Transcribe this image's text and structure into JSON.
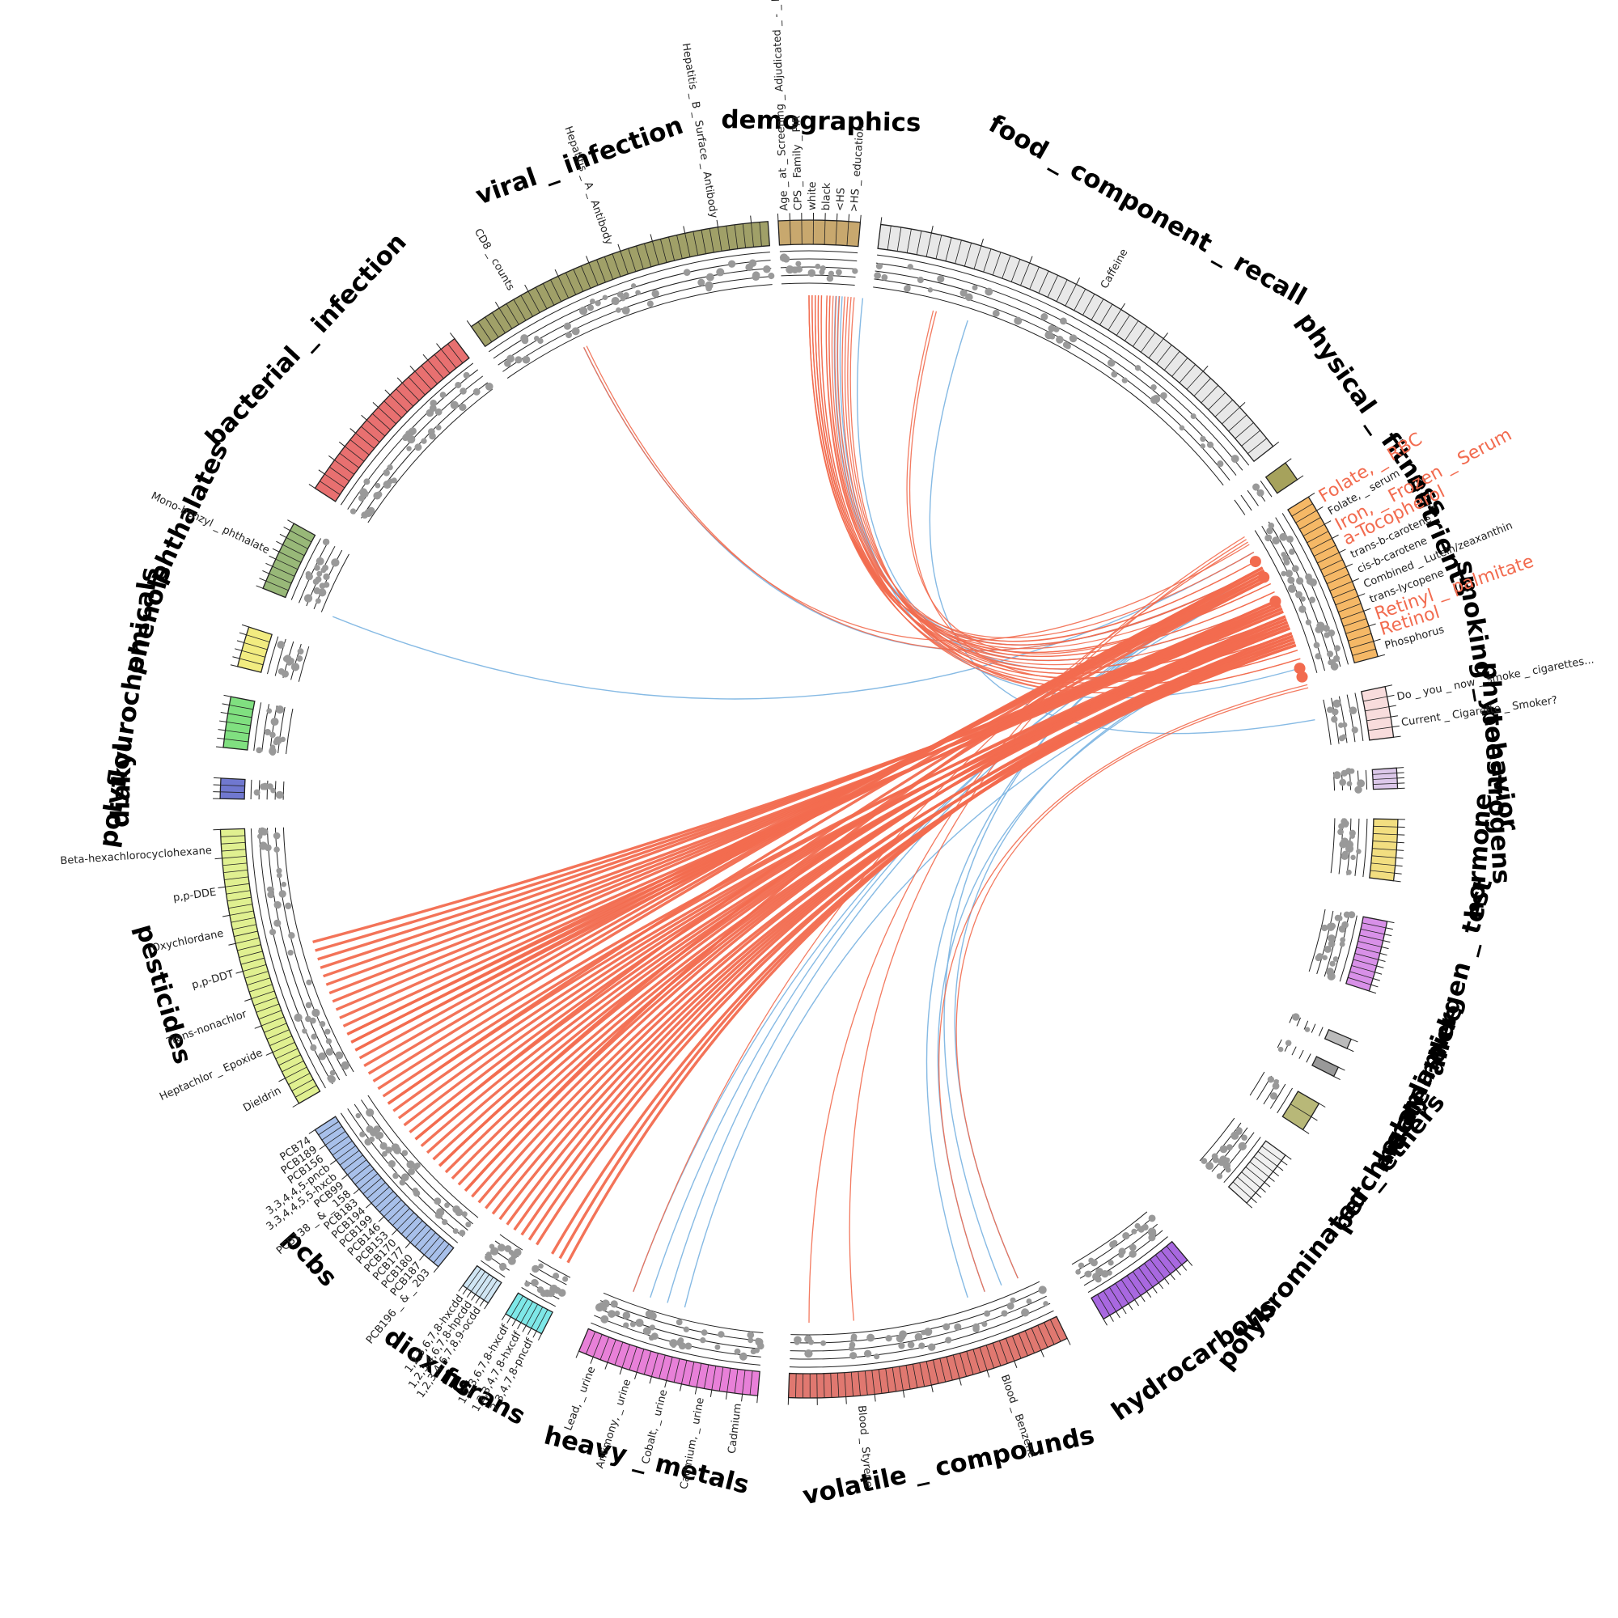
{
  "colors": {
    "link_positive": "#f26b4f",
    "link_negative": "#7fb6e3",
    "highlight": "#f26b4f",
    "dots": "#999999",
    "track_lines": "#222222"
  },
  "groups": [
    {
      "name": "demographics",
      "label": "demographics",
      "color": "#c8a86e",
      "start": -3,
      "end": 5,
      "ticks": 7
    },
    {
      "name": "food_component_recall",
      "label": "food _ component _ recall",
      "color": "#e8e8e8",
      "start": 7,
      "end": 52,
      "ticks": 45
    },
    {
      "name": "physical_fitness",
      "label": "physical _ fitness",
      "color": "#a6a25c",
      "start": 54,
      "end": 56,
      "ticks": 1
    },
    {
      "name": "nutrients",
      "label": "nutrients",
      "color": "#f5b866",
      "start": 58,
      "end": 75,
      "ticks": 22
    },
    {
      "name": "smoking_behavior",
      "label": "smoking _ behavior",
      "color": "#f8dcdc",
      "start": 78,
      "end": 83,
      "ticks": 5
    },
    {
      "name": "phytoestrogens",
      "label": "phytoestrogens",
      "color": "#dcc8ea",
      "start": 86,
      "end": 88,
      "ticks": 4
    },
    {
      "name": "hormone",
      "label": "hormone",
      "color": "#f2de80",
      "start": 91,
      "end": 97,
      "ticks": 8
    },
    {
      "name": "allergen_test",
      "label": "allergen _ test",
      "color": "#d890e8",
      "start": 101,
      "end": 108,
      "ticks": 11
    },
    {
      "name": "acrylamide",
      "label": "acrylamide",
      "color": "#bbbbbb",
      "start": 113,
      "end": 114,
      "ticks": 1
    },
    {
      "name": "melamine",
      "label": "melamine",
      "color": "#999999",
      "start": 116,
      "end": 117,
      "ticks": 1
    },
    {
      "name": "perchlorate",
      "label": "perchlorate",
      "color": "#b8b878",
      "start": 120,
      "end": 123,
      "ticks": 2
    },
    {
      "name": "polybrominated_ethers",
      "label": "polybrominated _ ethers",
      "color": "#f0f0f0",
      "start": 126,
      "end": 132,
      "ticks": 9
    },
    {
      "name": "hydrocarbons",
      "label": "hydrocarbons",
      "color": "#a868e0",
      "start": 140,
      "end": 150,
      "ticks": 14
    },
    {
      "name": "volatile_compounds",
      "label": "volatile _ compounds",
      "color": "#e07870",
      "start": 154,
      "end": 182,
      "ticks": 40
    },
    {
      "name": "heavy_metals",
      "label": "heavy _ metals",
      "color": "#e880d8",
      "start": 185,
      "end": 203,
      "ticks": 24
    },
    {
      "name": "furans",
      "label": "furans",
      "color": "#7ee8e8",
      "start": 207,
      "end": 211,
      "ticks": 7
    },
    {
      "name": "dioxins",
      "label": "dioxins",
      "color": "#d0e6f4",
      "start": 213,
      "end": 216,
      "ticks": 6
    },
    {
      "name": "pcbs",
      "label": "pcbs",
      "color": "#a8c0ea",
      "start": 219,
      "end": 237,
      "ticks": 30
    },
    {
      "name": "pesticides",
      "label": "pesticides",
      "color": "#e0f090",
      "start": 240,
      "end": 268,
      "ticks": 40
    },
    {
      "name": "diakyl",
      "label": "diakyl",
      "color": "#7078d0",
      "start": 271,
      "end": 273,
      "ticks": 3
    },
    {
      "name": "polyflourochemicals",
      "label": "polyflourochemicals",
      "color": "#80e080",
      "start": 276,
      "end": 281,
      "ticks": 6
    },
    {
      "name": "phenols",
      "label": "phenols",
      "color": "#f2ec80",
      "start": 284,
      "end": 288,
      "ticks": 5
    },
    {
      "name": "phthalates",
      "label": "phthalates",
      "color": "#98b878",
      "start": 292,
      "end": 299,
      "ticks": 9
    },
    {
      "name": "bacterial_infection",
      "label": "bacterial _ infection",
      "color": "#e87070",
      "start": 303,
      "end": 323,
      "ticks": 24
    },
    {
      "name": "viral_infection",
      "label": "viral _ infection",
      "color": "#a0a068",
      "start": 325,
      "end": 356,
      "ticks": 38
    }
  ],
  "variable_labels": [
    {
      "group": "demographics",
      "label": "Age _ at _ Screening _ Adjudicated _ - _ Re"
    },
    {
      "group": "demographics",
      "label": "CPS _ Family _ PIR"
    },
    {
      "group": "demographics",
      "label": "white"
    },
    {
      "group": "demographics",
      "label": "black"
    },
    {
      "group": "demographics",
      "label": "<HS"
    },
    {
      "group": "demographics",
      "label": ">HS _ education"
    },
    {
      "group": "food_component_recall",
      "label": "Caffeine"
    },
    {
      "group": "nutrients",
      "label": "Folate, _ RBC",
      "highlight": true
    },
    {
      "group": "nutrients",
      "label": "Folate, _ serum"
    },
    {
      "group": "nutrients",
      "label": "Iron, _ Frozen _ Serum",
      "highlight": true
    },
    {
      "group": "nutrients",
      "label": "a-Tocopherol",
      "highlight": true
    },
    {
      "group": "nutrients",
      "label": "trans-b-carotene"
    },
    {
      "group": "nutrients",
      "label": "cis-b-carotene"
    },
    {
      "group": "nutrients",
      "label": "Combined _ Lutein/zeaxanthin"
    },
    {
      "group": "nutrients",
      "label": "trans-lycopene"
    },
    {
      "group": "nutrients",
      "label": "Retinyl _ palmitate",
      "highlight": true
    },
    {
      "group": "nutrients",
      "label": "Retinol",
      "highlight": true
    },
    {
      "group": "nutrients",
      "label": "Phosphorus"
    },
    {
      "group": "smoking_behavior",
      "label": "Do _ you _ now _ smoke _ cigarettes..."
    },
    {
      "group": "smoking_behavior",
      "label": "Current _ Cigarette _ Smoker?"
    },
    {
      "group": "volatile_compounds",
      "label": "Blood _ Benzene"
    },
    {
      "group": "volatile_compounds",
      "label": "Blood _ Styrene"
    },
    {
      "group": "heavy_metals",
      "label": "Cadmium"
    },
    {
      "group": "heavy_metals",
      "label": "Cadmium, _ urine"
    },
    {
      "group": "heavy_metals",
      "label": "Cobalt, _ urine"
    },
    {
      "group": "heavy_metals",
      "label": "Antimony, _ urine"
    },
    {
      "group": "heavy_metals",
      "label": "Lead, _ urine"
    },
    {
      "group": "furans",
      "label": "2,3,4,7,8-pncdf"
    },
    {
      "group": "furans",
      "label": "1,2,3,4,7,8-hxcdf"
    },
    {
      "group": "furans",
      "label": "1,2,3,6,7,8-hxcdf"
    },
    {
      "group": "dioxins",
      "label": "1,2,3,4,6,7,8,9-ocdd"
    },
    {
      "group": "dioxins",
      "label": "1,2,3,4,6,7,8-hpcdd"
    },
    {
      "group": "dioxins",
      "label": "1,2,3,6,7,8-hxcdd"
    },
    {
      "group": "pcbs",
      "label": "PCB196 _ & _ 203"
    },
    {
      "group": "pcbs",
      "label": "PCB187"
    },
    {
      "group": "pcbs",
      "label": "PCB180"
    },
    {
      "group": "pcbs",
      "label": "PCB177"
    },
    {
      "group": "pcbs",
      "label": "PCB170"
    },
    {
      "group": "pcbs",
      "label": "PCB153"
    },
    {
      "group": "pcbs",
      "label": "PCB146"
    },
    {
      "group": "pcbs",
      "label": "PCB199"
    },
    {
      "group": "pcbs",
      "label": "PCB194"
    },
    {
      "group": "pcbs",
      "label": "PCB183"
    },
    {
      "group": "pcbs",
      "label": "PCB138 _ & _ 158"
    },
    {
      "group": "pcbs",
      "label": "PCB99"
    },
    {
      "group": "pcbs",
      "label": "3,3,4,4,5,5-hxcb"
    },
    {
      "group": "pcbs",
      "label": "3,3,4,4,5-pncb"
    },
    {
      "group": "pcbs",
      "label": "PCB156"
    },
    {
      "group": "pcbs",
      "label": "PCB189"
    },
    {
      "group": "pcbs",
      "label": "PCB74"
    },
    {
      "group": "pesticides",
      "label": "Dieldrin"
    },
    {
      "group": "pesticides",
      "label": "Heptachlor _ Epoxide"
    },
    {
      "group": "pesticides",
      "label": "Trans-nonachlor"
    },
    {
      "group": "pesticides",
      "label": "p,p-DDT"
    },
    {
      "group": "pesticides",
      "label": "Oxychlordane"
    },
    {
      "group": "pesticides",
      "label": "p,p-DDE"
    },
    {
      "group": "pesticides",
      "label": "Beta-hexachlorocyclohexane"
    },
    {
      "group": "phthalates",
      "label": "Mono-benzyl _ phthalate"
    },
    {
      "group": "viral_infection",
      "label": "CD8 _ counts"
    },
    {
      "group": "viral_infection",
      "label": "Hepatitis _ A _ Antibody"
    },
    {
      "group": "viral_infection",
      "label": "Hepatitis _ B _ Surface _ Antibody"
    }
  ],
  "links": {
    "positive_thick": [
      {
        "from": 66,
        "to": [
          242,
          243,
          244,
          245,
          246,
          247,
          248,
          249,
          250,
          251,
          252,
          253,
          254,
          255
        ]
      },
      {
        "from": 68,
        "to": [
          221,
          222,
          223,
          224,
          225,
          226,
          227,
          228,
          229,
          230,
          231,
          232,
          233,
          234,
          235,
          236,
          237
        ]
      },
      {
        "from": 70,
        "to": [
          208,
          209,
          210,
          212,
          213,
          214,
          215,
          216,
          217,
          218,
          219,
          220
        ]
      },
      {
        "from": 62,
        "to": [
          240,
          241,
          242,
          243,
          244,
          238,
          239,
          235,
          230,
          226,
          222
        ]
      }
    ],
    "positive_thin": [
      {
        "from": 0,
        "to": [
          61,
          62,
          63,
          64,
          65,
          66,
          67,
          68,
          69,
          70,
          71,
          72,
          73
        ]
      },
      {
        "from": 2,
        "to": [
          60,
          62,
          64,
          66,
          68,
          70,
          72
        ]
      },
      {
        "from": 4,
        "to": [
          61,
          65,
          69,
          73
        ]
      },
      {
        "from": 14,
        "to": [
          64,
          70
        ]
      },
      {
        "from": 58,
        "to": [
          180,
          175,
          200
        ]
      },
      {
        "from": 334,
        "to": [
          59,
          62
        ]
      },
      {
        "from": 76,
        "to": [
          160,
          156
        ]
      }
    ],
    "negative_thin": [
      {
        "from": 292,
        "to": [
          60
        ]
      },
      {
        "from": 334,
        "to": [
          62
        ]
      },
      {
        "from": 3,
        "to": [
          62,
          66,
          74
        ]
      },
      {
        "from": 6,
        "to": [
          68
        ]
      },
      {
        "from": 62,
        "to": [
          158,
          162,
          198,
          200,
          196
        ]
      },
      {
        "from": 70,
        "to": [
          156,
          160,
          194
        ]
      },
      {
        "from": 80,
        "to": [
          18
        ]
      }
    ]
  },
  "highlight_nodes": [
    61,
    63,
    66,
    74,
    75
  ]
}
